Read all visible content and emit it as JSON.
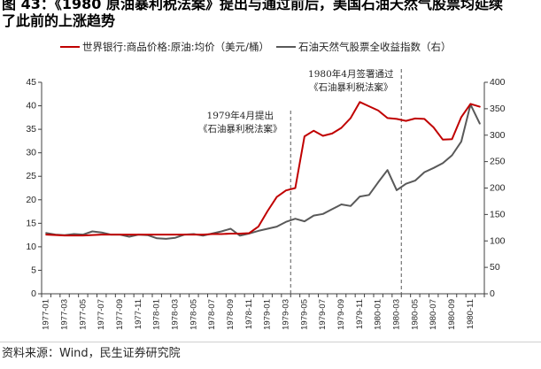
{
  "chart_data": {
    "type": "line",
    "title_lines": [
      "图 43：《1980 原油暴利税法案》提出与通过前后，美国石油天然气股票均延续",
      "了此前的上涨趋势"
    ],
    "x_tick_labels": [
      "1977-01",
      "1977-03",
      "1977-05",
      "1977-07",
      "1977-09",
      "1977-11",
      "1978-01",
      "1978-03",
      "1978-05",
      "1978-07",
      "1978-09",
      "1978-11",
      "1979-01",
      "1979-03",
      "1979-05",
      "1979-07",
      "1979-09",
      "1979-11",
      "1980-01",
      "1980-03",
      "1980-05",
      "1980-07",
      "1980-09",
      "1980-11"
    ],
    "x_tick_every": 2,
    "y_left": {
      "range": [
        0,
        45
      ],
      "ticks": [
        0,
        5,
        10,
        15,
        20,
        25,
        30,
        35,
        40,
        45
      ]
    },
    "y_right": {
      "range": [
        0,
        400
      ],
      "ticks": [
        0,
        50,
        100,
        150,
        200,
        250,
        300,
        350,
        400
      ]
    },
    "series": [
      {
        "name": "世界银行:商品价格:原油:均价（美元/桶）",
        "right_axis": false,
        "color": "#c00000",
        "values": [
          12.6,
          12.5,
          12.4,
          12.4,
          12.4,
          12.5,
          12.6,
          12.6,
          12.6,
          12.6,
          12.6,
          12.6,
          12.6,
          12.6,
          12.6,
          12.6,
          12.6,
          12.6,
          12.7,
          12.7,
          12.8,
          12.8,
          12.9,
          14.3,
          17.6,
          20.6,
          22.0,
          22.5,
          33.5,
          34.7,
          33.6,
          34.1,
          35.3,
          37.4,
          40.8,
          39.9,
          39.0,
          37.4,
          37.2,
          36.8,
          37.3,
          37.2,
          35.4,
          32.8,
          32.9,
          37.6,
          40.4,
          39.8
        ]
      },
      {
        "name": "石油天然气股票全收益指数（右）",
        "right_axis": true,
        "color": "#595959",
        "values": [
          115,
          112,
          111,
          113,
          112,
          118,
          116,
          112,
          112,
          108,
          112,
          111,
          105,
          104,
          106,
          112,
          113,
          110,
          114,
          118,
          123,
          110,
          114,
          119,
          123,
          127,
          136,
          142,
          137,
          148,
          151,
          160,
          169,
          166,
          184,
          187,
          211,
          234,
          196,
          208,
          214,
          230,
          238,
          247,
          262,
          288,
          358,
          322
        ]
      }
    ],
    "events": [
      {
        "month_index": 27,
        "lines": [
          "1979年4月提出",
          "《石油暴利税法案》"
        ]
      },
      {
        "month_index": 39,
        "lines": [
          "1980年4月签署通过",
          "《石油暴利税法案》"
        ]
      }
    ],
    "colors": {
      "axis": "#404040",
      "event_line": "#595959"
    }
  },
  "source": "资料来源：Wind，民生证券研究院"
}
